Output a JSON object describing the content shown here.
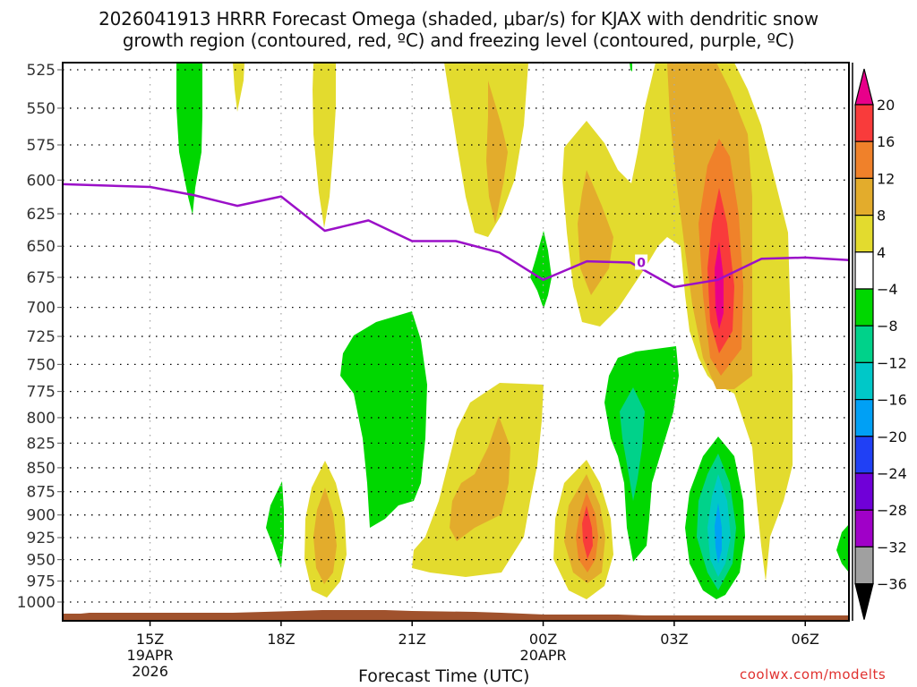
{
  "chart_data": {
    "type": "heatmap",
    "title": "2026041913 HRRR Forecast Omega (shaded, μbar/s) for KJAX with dendritic snow",
    "title_line2": "growth region (contoured, red, ºC) and freezing level (contoured, purple, ºC)",
    "xlabel": "Forecast Time (UTC)",
    "ylabel": "",
    "credit": "coolwx.com/modelts",
    "x_ticks": [
      {
        "hour": 15,
        "label": "15Z",
        "sub1": "19APR",
        "sub2": "2026"
      },
      {
        "hour": 18,
        "label": "18Z",
        "sub1": "",
        "sub2": ""
      },
      {
        "hour": 21,
        "label": "21Z",
        "sub1": "",
        "sub2": ""
      },
      {
        "hour": 24,
        "label": "00Z",
        "sub1": "20APR",
        "sub2": ""
      },
      {
        "hour": 27,
        "label": "03Z",
        "sub1": "",
        "sub2": ""
      },
      {
        "hour": 30,
        "label": "06Z",
        "sub1": "",
        "sub2": ""
      }
    ],
    "xlim_hours_from_19APR00Z": [
      13,
      31
    ],
    "y_ticks": [
      525,
      550,
      575,
      600,
      625,
      650,
      675,
      700,
      725,
      750,
      775,
      800,
      825,
      850,
      875,
      900,
      925,
      950,
      975,
      1000
    ],
    "ylim_hPa": [
      520,
      1025
    ],
    "y_scale": "log-pressure (inverted)",
    "grid": true,
    "colorbar": {
      "placement": "right",
      "levels": [
        20,
        16,
        12,
        8,
        4,
        -4,
        -8,
        -12,
        -16,
        -20,
        -24,
        -28,
        -32,
        -36
      ],
      "labels": [
        "20",
        "16",
        "12",
        "8",
        "4",
        "−4",
        "−8",
        "−12",
        "−16",
        "−20",
        "−24",
        "−28",
        "−32",
        "−36"
      ],
      "colors": {
        "above_20": "#e8008a",
        "16_20": "#f93b3b",
        "12_16": "#f0812a",
        "8_12": "#e3ac2c",
        "4_8": "#e3db2e",
        "-4_4": "#ffffff",
        "-8_-4": "#00d700",
        "-12_-8": "#00d28a",
        "-16_-12": "#00c8c8",
        "-20_-16": "#00a0f5",
        "-24_-20": "#2040f5",
        "-28_-24": "#7000d8",
        "-32_-28": "#a000c8",
        "-36_-32": "#a0a0a0",
        "below_-36": "#000000"
      }
    },
    "freezing_level": {
      "color": "#9b10c8",
      "contour_label": "0",
      "points": [
        {
          "hour": 13.0,
          "hPa": 603
        },
        {
          "hour": 15.0,
          "hPa": 605
        },
        {
          "hour": 16.0,
          "hPa": 611
        },
        {
          "hour": 17.0,
          "hPa": 619
        },
        {
          "hour": 18.0,
          "hPa": 612
        },
        {
          "hour": 19.0,
          "hPa": 638
        },
        {
          "hour": 20.0,
          "hPa": 630
        },
        {
          "hour": 21.0,
          "hPa": 646
        },
        {
          "hour": 22.0,
          "hPa": 646
        },
        {
          "hour": 23.0,
          "hPa": 655
        },
        {
          "hour": 24.0,
          "hPa": 677
        },
        {
          "hour": 25.0,
          "hPa": 662
        },
        {
          "hour": 26.0,
          "hPa": 663
        },
        {
          "hour": 27.0,
          "hPa": 683
        },
        {
          "hour": 28.0,
          "hPa": 677
        },
        {
          "hour": 29.0,
          "hPa": 660
        },
        {
          "hour": 30.0,
          "hPa": 659
        },
        {
          "hour": 31.0,
          "hPa": 661
        }
      ]
    },
    "terrain_color": "#a0522d",
    "omega_features": [
      {
        "name": "weak rising motion",
        "band": "-8_-4",
        "center_hour": 15.7,
        "top_hPa": 520,
        "bottom_hPa": 625
      },
      {
        "name": "weak sinking",
        "band": "4_8",
        "center_hour": 16.9,
        "top_hPa": 520,
        "bottom_hPa": 548
      },
      {
        "name": "weak sinking",
        "band": "4_8",
        "center_hour": 19.0,
        "top_hPa": 520,
        "bottom_hPa": 632
      },
      {
        "name": "sinking column",
        "band": "8_12",
        "center_hour": 22.9,
        "top_hPa": 520,
        "bottom_hPa": 700
      },
      {
        "name": "rising pocket",
        "band": "-8_-4",
        "center_hour": 24.0,
        "top_hPa": 655,
        "bottom_hPa": 700
      },
      {
        "name": "sinking plume",
        "band": "8_12",
        "center_hour": 25.0,
        "top_hPa": 590,
        "bottom_hPa": 725
      },
      {
        "name": "strong sinking max",
        "band": "above_20",
        "center_hour": 28.0,
        "top_hPa": 520,
        "bottom_hPa": 850
      },
      {
        "name": "rising region",
        "band": "-8_-4",
        "center_hour": 20.0,
        "top_hPa": 700,
        "bottom_hPa": 925
      },
      {
        "name": "sinking low-level",
        "band": "8_12",
        "center_hour": 22.7,
        "top_hPa": 780,
        "bottom_hPa": 960
      },
      {
        "name": "rising small",
        "band": "-8_-4",
        "center_hour": 18.0,
        "top_hPa": 870,
        "bottom_hPa": 955
      },
      {
        "name": "sinking low-level",
        "band": "8_12",
        "center_hour": 19.0,
        "top_hPa": 860,
        "bottom_hPa": 985
      },
      {
        "name": "sinking low-level max",
        "band": "16_20",
        "center_hour": 25.0,
        "top_hPa": 860,
        "bottom_hPa": 985
      },
      {
        "name": "rising mid-level",
        "band": "-12_-8",
        "center_hour": 26.9,
        "top_hPa": 750,
        "bottom_hPa": 945
      },
      {
        "name": "rising low-level max",
        "band": "-20_-16",
        "center_hour": 28.0,
        "top_hPa": 820,
        "bottom_hPa": 985
      },
      {
        "name": "rising edge",
        "band": "-8_-4",
        "center_hour": 30.9,
        "top_hPa": 920,
        "bottom_hPa": 960
      }
    ]
  }
}
